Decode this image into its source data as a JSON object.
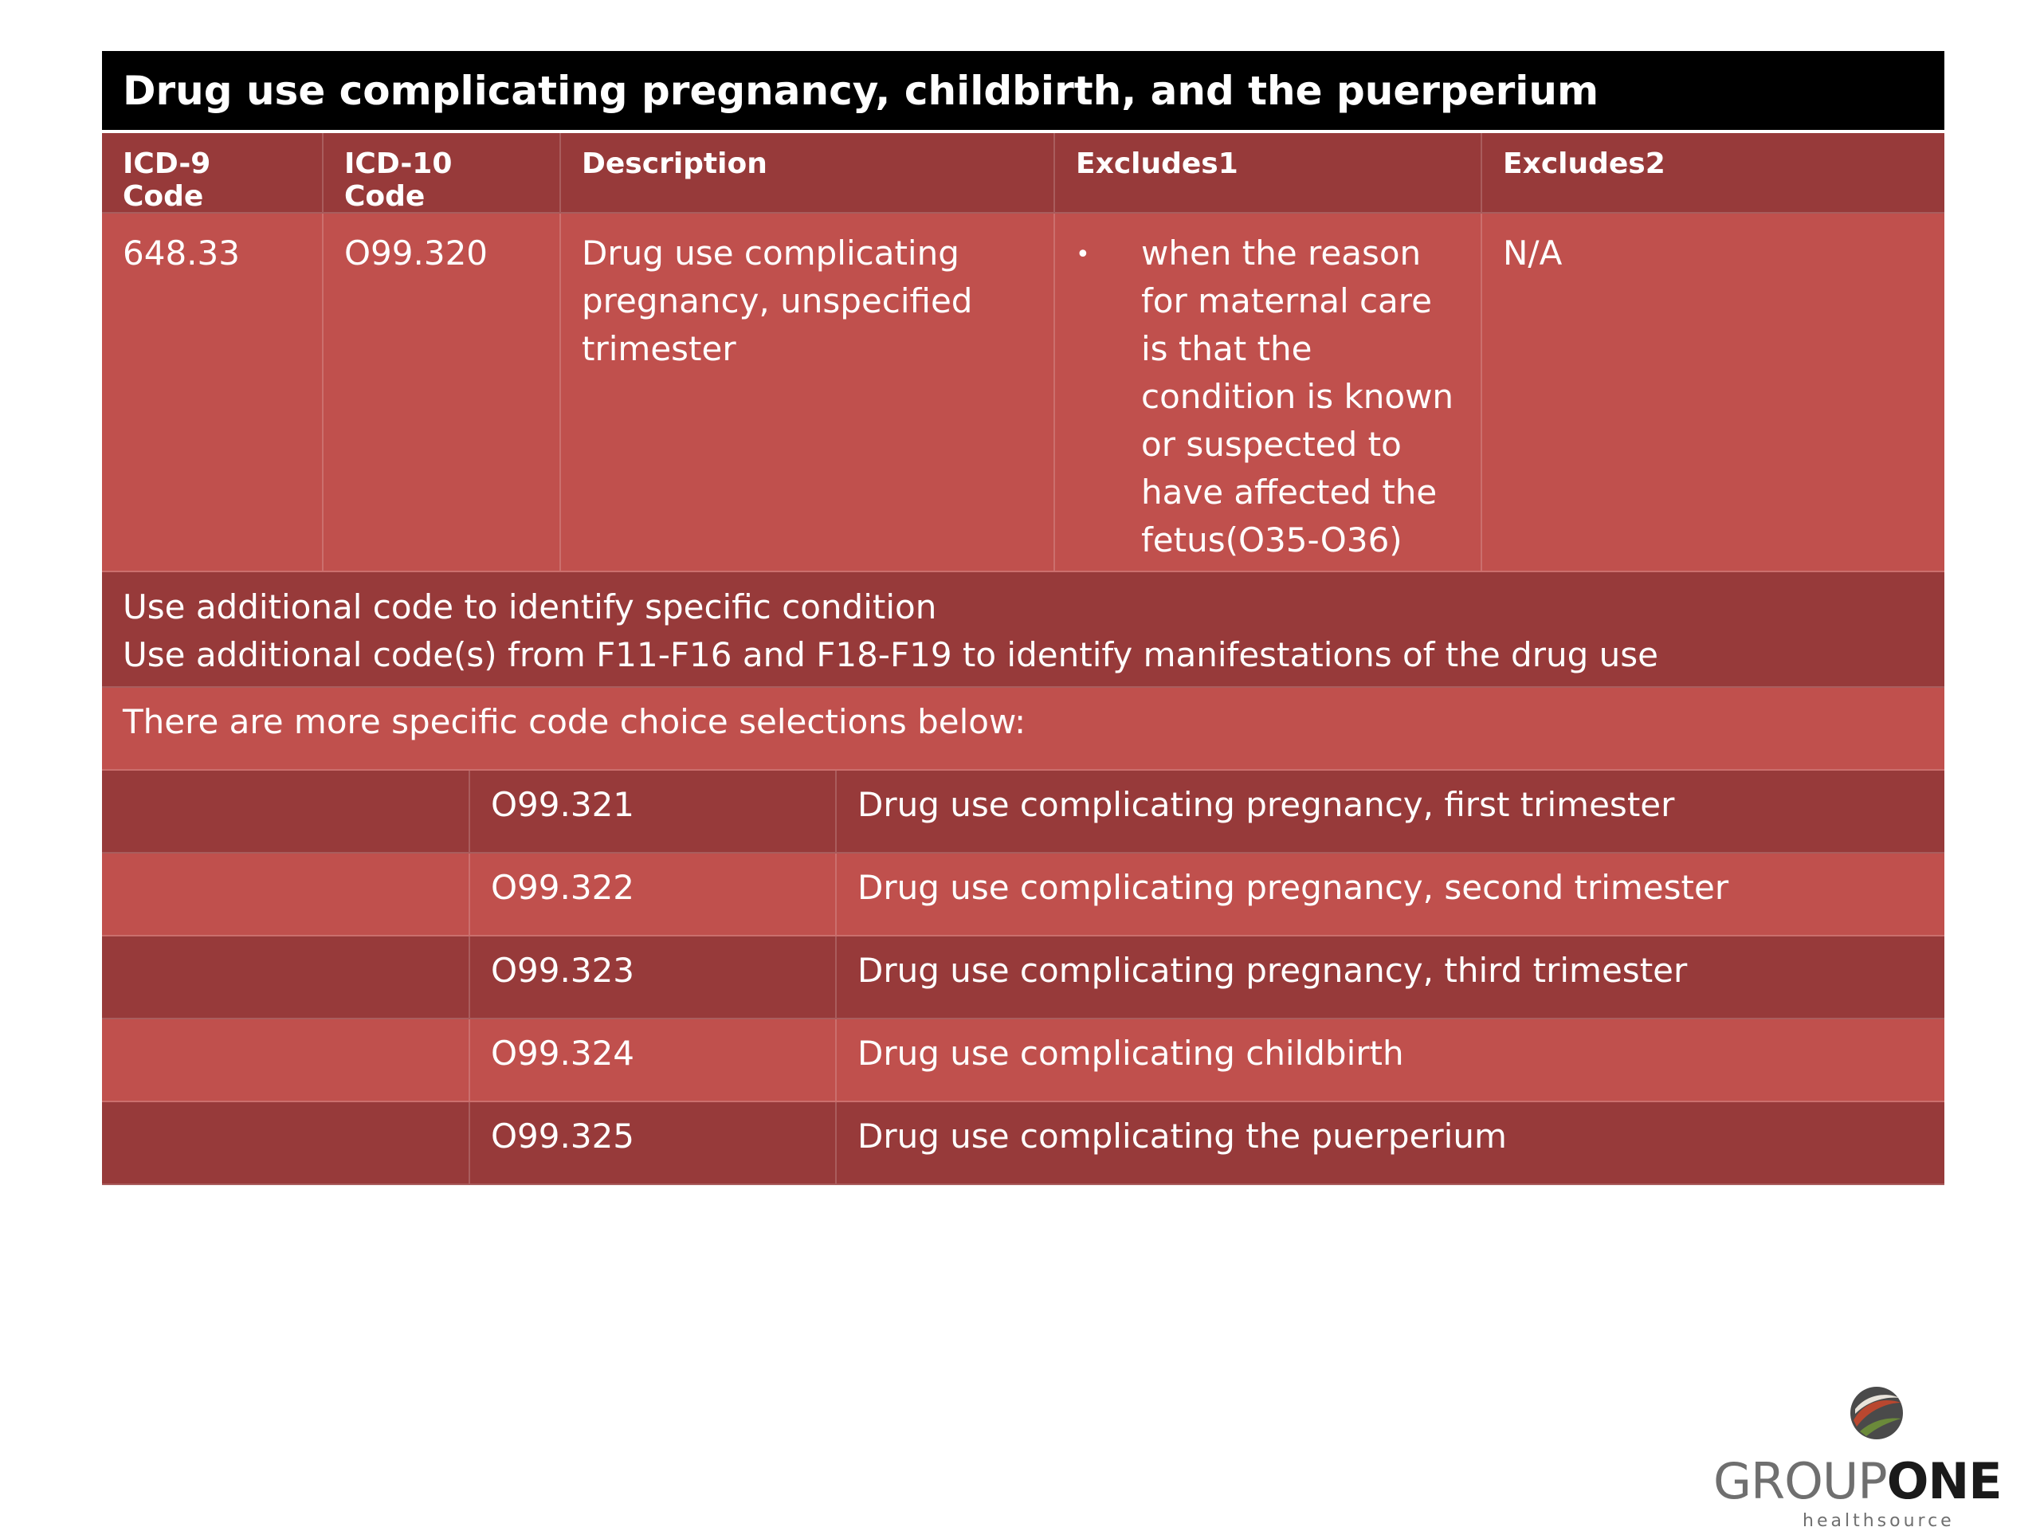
{
  "title": "Drug use complicating pregnancy, childbirth, and the puerperium",
  "headers": [
    "ICD-9 Code",
    "ICD-10 Code",
    "Description",
    "Excludes1",
    "Excludes2"
  ],
  "main_row": {
    "icd9": "648.33",
    "icd10": "O99.320",
    "description": "Drug use complicating pregnancy, unspecified trimester",
    "excludes1_bullet": "•",
    "excludes1": "when the reason for maternal care is that the condition is known or suspected to have affected the fetus(O35-O36)",
    "excludes2": "N/A"
  },
  "notes": [
    "Use additional code to identify specific condition",
    "Use additional code(s) from F11-F16 and F18-F19 to identify manifestations of the drug use"
  ],
  "choice_intro": "There are more specific code choice selections below:",
  "sub_codes": [
    {
      "code": "O99.321",
      "description": "Drug use complicating pregnancy, first trimester"
    },
    {
      "code": "O99.322",
      "description": "Drug use complicating pregnancy, second trimester"
    },
    {
      "code": "O99.323",
      "description": "Drug use complicating pregnancy, third trimester"
    },
    {
      "code": "O99.324",
      "description": "Drug use complicating childbirth"
    },
    {
      "code": "O99.325",
      "description": "Drug use complicating the puerperium"
    }
  ],
  "logo": {
    "part1": "GROUP",
    "part2": "ONE",
    "subtitle": "healthsource",
    "icon": "swirl-logo-icon"
  },
  "colors": {
    "dark_red": "#973a3a",
    "light_red": "#c0504d",
    "title_bg": "#000000"
  }
}
